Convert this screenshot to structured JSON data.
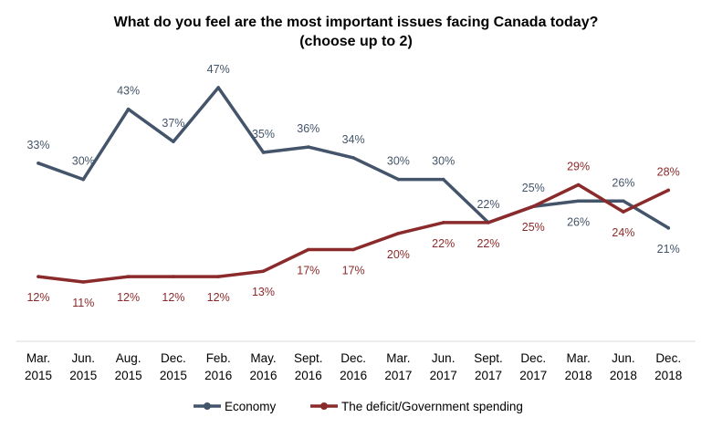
{
  "chart_data": {
    "type": "line",
    "title": "What do you feel are the most important issues facing Canada today?",
    "subtitle": "(choose up to 2)",
    "xlabel": "",
    "ylabel": "",
    "ylim": [
      0,
      50
    ],
    "grid": false,
    "legend_position": "bottom",
    "categories": [
      [
        "Mar.",
        "2015"
      ],
      [
        "Jun.",
        "2015"
      ],
      [
        "Aug.",
        "2015"
      ],
      [
        "Dec.",
        "2015"
      ],
      [
        "Feb.",
        "2016"
      ],
      [
        "May.",
        "2016"
      ],
      [
        "Sept.",
        "2016"
      ],
      [
        "Dec.",
        "2016"
      ],
      [
        "Mar.",
        "2017"
      ],
      [
        "Jun.",
        "2017"
      ],
      [
        "Sept.",
        "2017"
      ],
      [
        "Dec.",
        "2017"
      ],
      [
        "Mar.",
        "2018"
      ],
      [
        "Jun.",
        "2018"
      ],
      [
        "Dec.",
        "2018"
      ]
    ],
    "series": [
      {
        "name": "Economy",
        "color": "#44546a",
        "values": [
          33,
          30,
          43,
          37,
          47,
          35,
          36,
          34,
          30,
          30,
          22,
          25,
          26,
          26,
          21
        ],
        "labels": [
          "33%",
          "30%",
          "43%",
          "37%",
          "47%",
          "35%",
          "36%",
          "34%",
          "30%",
          "30%",
          "22%",
          "25%",
          "26%",
          "26%",
          "21%"
        ],
        "label_side": [
          "above",
          "above",
          "above",
          "above",
          "above",
          "above",
          "above",
          "above",
          "above",
          "above",
          "above",
          "above",
          "below",
          "above",
          "below"
        ]
      },
      {
        "name": "The deficit/Government spending",
        "color": "#8b2a2a",
        "values": [
          12,
          11,
          12,
          12,
          12,
          13,
          17,
          17,
          20,
          22,
          22,
          25,
          29,
          24,
          28
        ],
        "labels": [
          "12%",
          "11%",
          "12%",
          "12%",
          "12%",
          "13%",
          "17%",
          "17%",
          "20%",
          "22%",
          "22%",
          "25%",
          "29%",
          "24%",
          "28%"
        ],
        "label_side": [
          "below",
          "below",
          "below",
          "below",
          "below",
          "below",
          "below",
          "below",
          "below",
          "below",
          "below",
          "below",
          "above",
          "below",
          "above"
        ]
      }
    ]
  }
}
